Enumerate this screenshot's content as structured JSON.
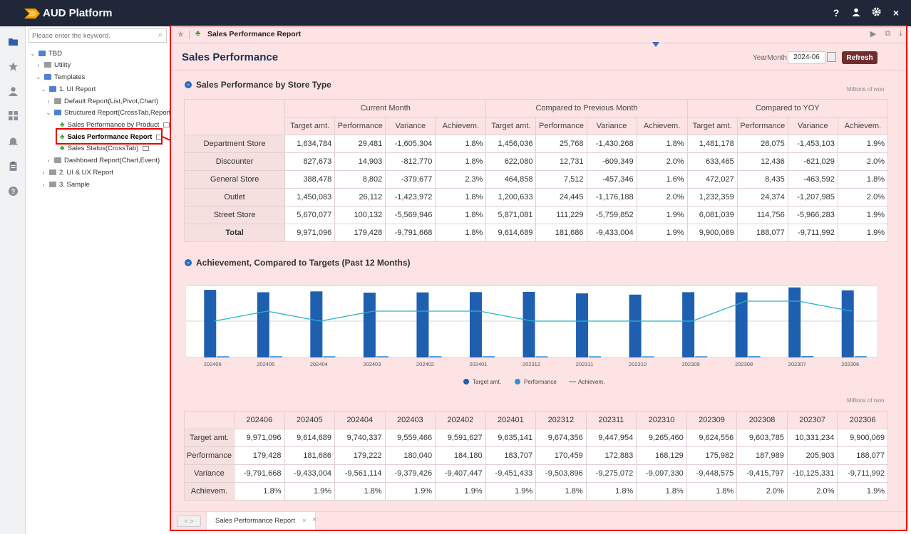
{
  "app": {
    "title": "AUD Platform"
  },
  "topbar": {
    "icons": [
      "help-icon",
      "user-icon",
      "gear-icon",
      "close-icon"
    ],
    "help_glyph": "?",
    "close_glyph": "×"
  },
  "rail": {
    "icons": [
      "folder-icon",
      "star-icon",
      "user-icon",
      "dashboard-icon",
      "alarm-icon",
      "clipboard-icon",
      "help-icon"
    ]
  },
  "tree": {
    "search_placeholder": "Please enter the keyword.",
    "items": [
      {
        "label": "TBD"
      },
      {
        "label": "Utility"
      },
      {
        "label": "Templates"
      },
      {
        "label": "1. UI Report"
      },
      {
        "label": "Default Report(List,Pivot,Chart)"
      },
      {
        "label": "Structured Report(CrossTab,Report)"
      },
      {
        "label": "Sales Performance by Product"
      },
      {
        "label": "Sales Performance Report"
      },
      {
        "label": "Sales Status(CrossTab)"
      },
      {
        "label": "Dashboard Report(Chart,Event)"
      },
      {
        "label": "2. UI & UX Report"
      },
      {
        "label": "3. Sample"
      }
    ]
  },
  "report": {
    "tab_title": "Sales Performance Report",
    "page_title": "Sales Performance",
    "yearmonth_label": "YearMonth",
    "yearmonth_value": "2024-06",
    "refresh_label": "Refresh",
    "section1_title": "Sales Performance by Store Type",
    "section2_title": "Achievement, Compared to Targets (Past 12 Months)",
    "unit_label": "Millions of won",
    "unit_label2": "Millions of won"
  },
  "table1": {
    "groups": [
      "Current Month",
      "Compared to Previous Month",
      "Compared to YOY"
    ],
    "subheaders": [
      "Target amt.",
      "Performance",
      "Variance",
      "Achievem."
    ],
    "rows": [
      {
        "label": "Department Store",
        "cells": [
          "1,634,784",
          "29,481",
          "-1,605,304",
          "1.8%",
          "1,456,036",
          "25,768",
          "-1,430,268",
          "1.8%",
          "1,481,178",
          "28,075",
          "-1,453,103",
          "1.9%"
        ]
      },
      {
        "label": "Discounter",
        "cells": [
          "827,673",
          "14,903",
          "-812,770",
          "1.8%",
          "622,080",
          "12,731",
          "-609,349",
          "2.0%",
          "633,465",
          "12,436",
          "-621,029",
          "2.0%"
        ]
      },
      {
        "label": "General Store",
        "cells": [
          "388,478",
          "8,802",
          "-379,677",
          "2.3%",
          "464,858",
          "7,512",
          "-457,346",
          "1.6%",
          "472,027",
          "8,435",
          "-463,592",
          "1.8%"
        ]
      },
      {
        "label": "Outlet",
        "cells": [
          "1,450,083",
          "26,112",
          "-1,423,972",
          "1.8%",
          "1,200,633",
          "24,445",
          "-1,176,188",
          "2.0%",
          "1,232,359",
          "24,374",
          "-1,207,985",
          "2.0%"
        ]
      },
      {
        "label": "Street Store",
        "cells": [
          "5,670,077",
          "100,132",
          "-5,569,946",
          "1.8%",
          "5,871,081",
          "111,229",
          "-5,759,852",
          "1.9%",
          "6,081,039",
          "114,756",
          "-5,966,283",
          "1.9%"
        ]
      },
      {
        "label": "Total",
        "cells": [
          "9,971,096",
          "179,428",
          "-9,791,668",
          "1.8%",
          "9,614,689",
          "181,686",
          "-9,433,004",
          "1.9%",
          "9,900,069",
          "188,077",
          "-9,711,992",
          "1.9%"
        ]
      }
    ]
  },
  "chart_data": {
    "type": "bar",
    "categories": [
      "202406",
      "202405",
      "202404",
      "202403",
      "202402",
      "202401",
      "202312",
      "202311",
      "202310",
      "202309",
      "202308",
      "202307",
      "202306"
    ],
    "series": [
      {
        "name": "Target amt.",
        "type": "bar",
        "color": "#1f5fb0",
        "values": [
          9971096,
          9614689,
          9740337,
          9559466,
          9591627,
          9635141,
          9674356,
          9447954,
          9265460,
          9624556,
          9603785,
          10331234,
          9900069
        ]
      },
      {
        "name": "Performance",
        "type": "bar",
        "color": "#2f8fd8",
        "values": [
          179428,
          181686,
          179222,
          180040,
          184180,
          183707,
          170459,
          172883,
          168129,
          175982,
          187989,
          205903,
          188077
        ]
      },
      {
        "name": "Achievem.",
        "type": "line",
        "color": "#28b3c8",
        "values": [
          1.8,
          1.9,
          1.8,
          1.9,
          1.9,
          1.9,
          1.8,
          1.8,
          1.8,
          1.8,
          2.0,
          2.0,
          1.9
        ]
      }
    ],
    "legend_position": "bottom",
    "grid": true
  },
  "table2": {
    "rows": [
      {
        "label": "Target amt.",
        "cells": [
          "9,971,096",
          "9,614,689",
          "9,740,337",
          "9,559,466",
          "9,591,627",
          "9,635,141",
          "9,674,356",
          "9,447,954",
          "9,265,460",
          "9,624,556",
          "9,603,785",
          "10,331,234",
          "9,900,069"
        ]
      },
      {
        "label": "Performance",
        "cells": [
          "179,428",
          "181,686",
          "179,222",
          "180,040",
          "184,180",
          "183,707",
          "170,459",
          "172,883",
          "168,129",
          "175,982",
          "187,989",
          "205,903",
          "188,077"
        ]
      },
      {
        "label": "Variance",
        "cells": [
          "-9,791,668",
          "-9,433,004",
          "-9,561,114",
          "-9,379,426",
          "-9,407,447",
          "-9,451,433",
          "-9,503,896",
          "-9,275,072",
          "-9,097,330",
          "-9,448,575",
          "-9,415,797",
          "-10,125,331",
          "-9,711,992"
        ]
      },
      {
        "label": "Achievem.",
        "cells": [
          "1.8%",
          "1.9%",
          "1.8%",
          "1.9%",
          "1.9%",
          "1.9%",
          "1.8%",
          "1.8%",
          "1.8%",
          "1.8%",
          "2.0%",
          "2.0%",
          "1.9%"
        ]
      }
    ]
  },
  "footer": {
    "tab_label": "Sales Performance Report",
    "nav": "< >",
    "close_glyph": "×"
  },
  "colors": {
    "topbar": "#1f2739",
    "accent_red": "#e00000",
    "refresh_bg": "#6e2e2e",
    "achieve_bar": "#b4b1d1",
    "content_bg": "#fde3e3"
  }
}
